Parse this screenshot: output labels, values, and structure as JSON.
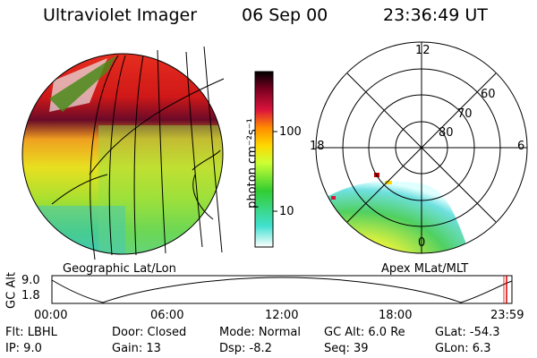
{
  "header": {
    "instrument": "Ultraviolet Imager",
    "date": "06 Sep 00",
    "time": "23:36:49 UT"
  },
  "colorbar": {
    "unit_label": "photon cm⁻²s⁻¹",
    "ticks": [
      "100",
      "10"
    ],
    "colors": [
      "#ffffff",
      "#40e0d0",
      "#32cd32",
      "#ffff00",
      "#ffa500",
      "#dc143c",
      "#8b0000",
      "#000000"
    ]
  },
  "left_panel": {
    "caption": "Geographic Lat/Lon"
  },
  "right_panel": {
    "caption": "Apex MLat/MLT",
    "mlt_labels": {
      "top": "12",
      "left": "18",
      "right": "6",
      "bottom": "0"
    },
    "mlat_labels": [
      "60",
      "70",
      "80"
    ]
  },
  "timeline": {
    "axis_label": "GC Alt",
    "y_ticks": [
      "9.0",
      "1.8"
    ],
    "x_ticks": [
      "00:00",
      "06:00",
      "12:00",
      "18:00",
      "23:59"
    ]
  },
  "info": {
    "flt": "Flt: LBHL",
    "door": "Door: Closed",
    "mode": "Mode: Normal",
    "gc_alt": "GC Alt: 6.0 Re",
    "glat": "GLat: -54.3",
    "ip": "IP:  9.0",
    "gain": "Gain: 13",
    "dsp": "Dsp:    -8.2",
    "seq": "Seq: 39",
    "glon": "GLon:  6.3"
  }
}
